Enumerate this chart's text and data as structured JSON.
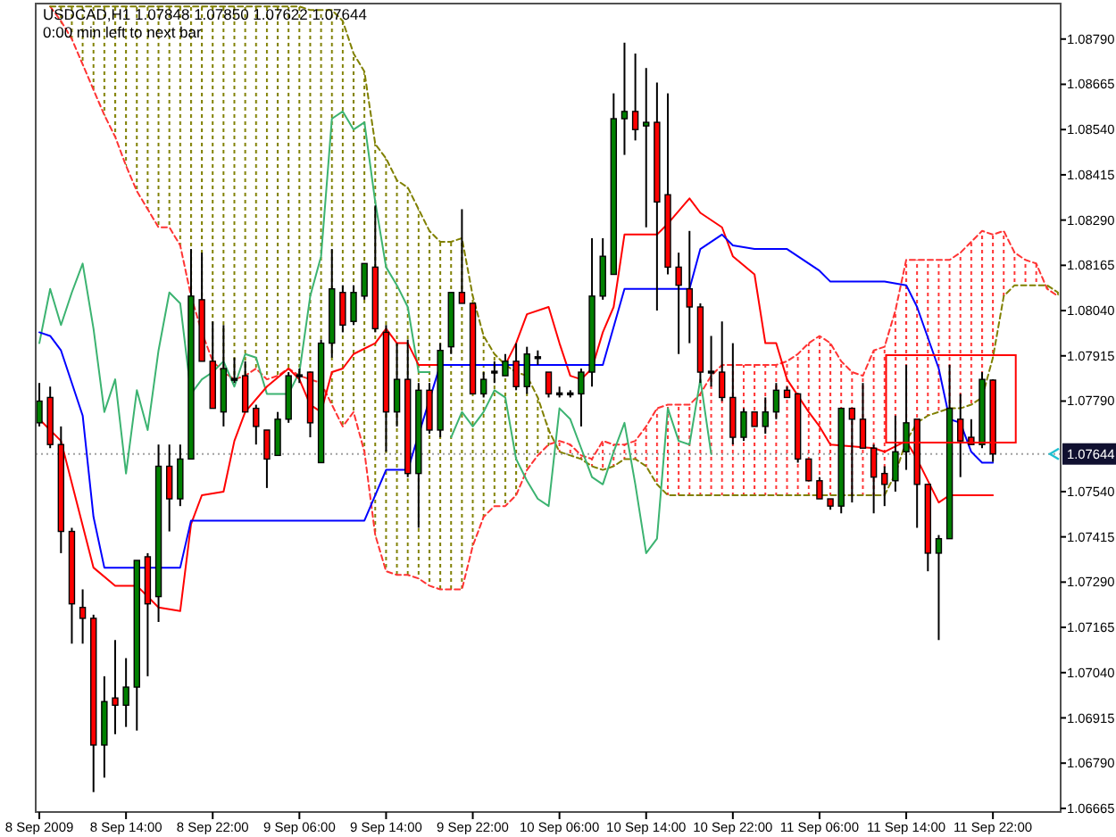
{
  "chart_data": {
    "type": "candlestick",
    "title": "USDCAD,H1 1.07848 1.07850 1.07622 1.07644",
    "subtitle": "0:00 min left to next bar",
    "x": [
      "2009-09-08T06:00",
      "2009-09-08T07:00",
      "2009-09-08T08:00",
      "2009-09-08T09:00",
      "2009-09-08T10:00",
      "2009-09-08T11:00",
      "2009-09-08T12:00",
      "2009-09-08T13:00",
      "2009-09-08T14:00",
      "2009-09-08T15:00",
      "2009-09-08T16:00",
      "2009-09-08T17:00",
      "2009-09-08T18:00",
      "2009-09-08T19:00",
      "2009-09-08T20:00",
      "2009-09-08T21:00",
      "2009-09-08T22:00",
      "2009-09-08T23:00",
      "2009-09-09T00:00",
      "2009-09-09T01:00",
      "2009-09-09T02:00",
      "2009-09-09T03:00",
      "2009-09-09T04:00",
      "2009-09-09T05:00",
      "2009-09-09T06:00",
      "2009-09-09T07:00",
      "2009-09-09T08:00",
      "2009-09-09T09:00",
      "2009-09-09T10:00",
      "2009-09-09T11:00",
      "2009-09-09T12:00",
      "2009-09-09T13:00",
      "2009-09-09T14:00",
      "2009-09-09T15:00",
      "2009-09-09T16:00",
      "2009-09-09T17:00",
      "2009-09-09T18:00",
      "2009-09-09T19:00",
      "2009-09-09T20:00",
      "2009-09-09T21:00",
      "2009-09-09T22:00",
      "2009-09-09T23:00",
      "2009-09-10T00:00",
      "2009-09-10T01:00",
      "2009-09-10T02:00",
      "2009-09-10T03:00",
      "2009-09-10T04:00",
      "2009-09-10T05:00",
      "2009-09-10T06:00",
      "2009-09-10T07:00",
      "2009-09-10T08:00",
      "2009-09-10T09:00",
      "2009-09-10T10:00",
      "2009-09-10T11:00",
      "2009-09-10T12:00",
      "2009-09-10T13:00",
      "2009-09-10T14:00",
      "2009-09-10T15:00",
      "2009-09-10T16:00",
      "2009-09-10T17:00",
      "2009-09-10T18:00",
      "2009-09-10T19:00",
      "2009-09-10T20:00",
      "2009-09-10T21:00",
      "2009-09-10T22:00",
      "2009-09-10T23:00",
      "2009-09-11T00:00",
      "2009-09-11T01:00",
      "2009-09-11T02:00",
      "2009-09-11T03:00",
      "2009-09-11T04:00",
      "2009-09-11T05:00",
      "2009-09-11T06:00",
      "2009-09-11T07:00",
      "2009-09-11T08:00",
      "2009-09-11T09:00",
      "2009-09-11T10:00",
      "2009-09-11T11:00",
      "2009-09-11T12:00",
      "2009-09-11T13:00",
      "2009-09-11T14:00",
      "2009-09-11T15:00",
      "2009-09-11T16:00",
      "2009-09-11T17:00",
      "2009-09-11T18:00",
      "2009-09-11T19:00",
      "2009-09-11T20:00",
      "2009-09-11T21:00",
      "2009-09-11T22:00",
      "2009-09-11T23:00",
      "2009-09-12T00:00",
      "2009-09-12T01:00",
      "2009-09-12T02:00",
      "2009-09-12T03:00",
      "2009-09-12T04:00"
    ],
    "ohlc": [
      [
        1.0773,
        1.0784,
        1.0772,
        1.0779
      ],
      [
        1.078,
        1.0783,
        1.0766,
        1.0767
      ],
      [
        1.0767,
        1.0772,
        1.0737,
        1.0743
      ],
      [
        1.0743,
        1.0744,
        1.0712,
        1.0723
      ],
      [
        1.0722,
        1.0727,
        1.0712,
        1.0719
      ],
      [
        1.0719,
        1.072,
        1.0671,
        1.0684
      ],
      [
        1.0684,
        1.0703,
        1.0675,
        1.0696
      ],
      [
        1.0697,
        1.0713,
        1.0687,
        1.0695
      ],
      [
        1.0695,
        1.0708,
        1.0689,
        1.07
      ],
      [
        1.07,
        1.0735,
        1.0688,
        1.0735
      ],
      [
        1.0736,
        1.0737,
        1.0703,
        1.0723
      ],
      [
        1.0725,
        1.0767,
        1.0718,
        1.0761
      ],
      [
        1.0761,
        1.0767,
        1.0743,
        1.0752
      ],
      [
        1.0752,
        1.0767,
        1.075,
        1.0763
      ],
      [
        1.0763,
        1.0821,
        1.0763,
        1.0808
      ],
      [
        1.0807,
        1.082,
        1.079,
        1.079
      ],
      [
        1.079,
        1.0801,
        1.0777,
        1.0777
      ],
      [
        1.0776,
        1.08,
        1.0772,
        1.0788
      ],
      [
        1.0785,
        1.0791,
        1.0784,
        1.0785
      ],
      [
        1.0786,
        1.079,
        1.0776,
        1.0776
      ],
      [
        1.0777,
        1.0778,
        1.0767,
        1.0772
      ],
      [
        1.0771,
        1.0771,
        1.0755,
        1.0763
      ],
      [
        1.0764,
        1.0776,
        1.0764,
        1.0774
      ],
      [
        1.0774,
        1.0787,
        1.0773,
        1.0786
      ],
      [
        1.0786,
        1.0788,
        1.0784,
        1.0786
      ],
      [
        1.0787,
        1.0787,
        1.0769,
        1.0773
      ],
      [
        1.0762,
        1.0796,
        1.0762,
        1.0795
      ],
      [
        1.0795,
        1.0821,
        1.0791,
        1.081
      ],
      [
        1.0809,
        1.0811,
        1.0798,
        1.08
      ],
      [
        1.0801,
        1.0811,
        1.08,
        1.0809
      ],
      [
        1.0808,
        1.0817,
        1.0807,
        1.0817
      ],
      [
        1.0816,
        1.0833,
        1.0798,
        1.0799
      ],
      [
        1.0798,
        1.08,
        1.0765,
        1.0776
      ],
      [
        1.0776,
        1.0795,
        1.0772,
        1.0785
      ],
      [
        1.0785,
        1.0796,
        1.0758,
        1.0759
      ],
      [
        1.0759,
        1.0784,
        1.0744,
        1.0782
      ],
      [
        1.0782,
        1.0784,
        1.077,
        1.0771
      ],
      [
        1.0771,
        1.0795,
        1.0769,
        1.0793
      ],
      [
        1.0794,
        1.0809,
        1.0792,
        1.0809
      ],
      [
        1.0809,
        1.0832,
        1.0806,
        1.0806
      ],
      [
        1.0806,
        1.0806,
        1.0781,
        1.0781
      ],
      [
        1.0781,
        1.0787,
        1.078,
        1.0785
      ],
      [
        1.0787,
        1.079,
        1.0784,
        1.0787
      ],
      [
        1.0786,
        1.0792,
        1.0786,
        1.079
      ],
      [
        1.079,
        1.0795,
        1.0782,
        1.0783
      ],
      [
        1.0783,
        1.0794,
        1.0781,
        1.0792
      ],
      [
        1.0791,
        1.0793,
        1.0789,
        1.0791
      ],
      [
        1.0787,
        1.0787,
        1.078,
        1.0781
      ],
      [
        1.0781,
        1.0783,
        1.078,
        1.0781
      ],
      [
        1.0781,
        1.0782,
        1.078,
        1.0781
      ],
      [
        1.0781,
        1.0788,
        1.0772,
        1.0787
      ],
      [
        1.0787,
        1.0824,
        1.0783,
        1.0808
      ],
      [
        1.0808,
        1.0824,
        1.0807,
        1.0819
      ],
      [
        1.0814,
        1.0864,
        1.0814,
        1.0857
      ],
      [
        1.0857,
        1.0878,
        1.0847,
        1.0859
      ],
      [
        1.0859,
        1.0875,
        1.0851,
        1.0854
      ],
      [
        1.0855,
        1.0871,
        1.0827,
        1.0856
      ],
      [
        1.0856,
        1.0867,
        1.0804,
        1.0834
      ],
      [
        1.0836,
        1.0864,
        1.0814,
        1.0816
      ],
      [
        1.0816,
        1.082,
        1.0792,
        1.0811
      ],
      [
        1.081,
        1.0826,
        1.0795,
        1.0805
      ],
      [
        1.0805,
        1.0806,
        1.0784,
        1.0787
      ],
      [
        1.0787,
        1.0797,
        1.0783,
        1.0787
      ],
      [
        1.0787,
        1.0801,
        1.0779,
        1.078
      ],
      [
        1.078,
        1.0795,
        1.0767,
        1.0769
      ],
      [
        1.0769,
        1.0777,
        1.0768,
        1.0776
      ],
      [
        1.0776,
        1.0776,
        1.0772,
        1.0772
      ],
      [
        1.0772,
        1.078,
        1.077,
        1.0776
      ],
      [
        1.0776,
        1.0784,
        1.0774,
        1.0782
      ],
      [
        1.0782,
        1.0783,
        1.078,
        1.078
      ],
      [
        1.0781,
        1.0781,
        1.0762,
        1.0763
      ],
      [
        1.0763,
        1.0763,
        1.0757,
        1.0757
      ],
      [
        1.0757,
        1.0758,
        1.0752,
        1.0752
      ],
      [
        1.0752,
        1.0752,
        1.0749,
        1.075
      ],
      [
        1.075,
        1.0777,
        1.0748,
        1.0777
      ],
      [
        1.0777,
        1.0777,
        1.0751,
        1.0774
      ],
      [
        1.0774,
        1.0784,
        1.0766,
        1.0766
      ],
      [
        1.0766,
        1.0767,
        1.0748,
        1.0758
      ],
      [
        1.0759,
        1.0761,
        1.075,
        1.0756
      ],
      [
        1.0757,
        1.0775,
        1.0754,
        1.0765
      ],
      [
        1.0765,
        1.0789,
        1.076,
        1.0773
      ],
      [
        1.0774,
        1.0774,
        1.0744,
        1.0756
      ],
      [
        1.0756,
        1.0756,
        1.0732,
        1.0737
      ],
      [
        1.0737,
        1.0742,
        1.0713,
        1.0741
      ],
      [
        1.0741,
        1.0789,
        1.0741,
        1.0777
      ],
      [
        1.0774,
        1.0781,
        1.0758,
        1.0768
      ],
      [
        1.0769,
        1.0774,
        1.0767,
        1.0767
      ],
      [
        1.0767,
        1.0787,
        1.0766,
        1.0785
      ],
      [
        1.07848,
        1.0785,
        1.07622,
        1.07644
      ],
      null,
      null,
      null,
      null,
      null,
      null
    ],
    "colors": [
      "#008000",
      "#ff0000",
      "#ff0000",
      "#ff0000",
      "#ff0000",
      "#ff0000",
      "#008000",
      "#ff0000",
      "#008000",
      "#008000",
      "#ff0000",
      "#008000",
      "#ff0000",
      "#008000",
      "#008000",
      "#ff0000",
      "#ff0000",
      "#008000",
      "#000000",
      "#ff0000",
      "#ff0000",
      "#ff0000",
      "#008000",
      "#008000",
      "#000000",
      "#ff0000",
      "#008000",
      "#008000",
      "#ff0000",
      "#008000",
      "#008000",
      "#ff0000",
      "#ff0000",
      "#008000",
      "#ff0000",
      "#008000",
      "#ff0000",
      "#008000",
      "#008000",
      "#ff0000",
      "#ff0000",
      "#008000",
      "#000000",
      "#008000",
      "#ff0000",
      "#008000",
      "#000000",
      "#ff0000",
      "#000000",
      "#000000",
      "#008000",
      "#008000",
      "#008000",
      "#008000",
      "#008000",
      "#ff0000",
      "#008000",
      "#ff0000",
      "#ff0000",
      "#ff0000",
      "#ff0000",
      "#ff0000",
      "#000000",
      "#ff0000",
      "#ff0000",
      "#008000",
      "#ff0000",
      "#008000",
      "#008000",
      "#ff0000",
      "#ff0000",
      "#ff0000",
      "#ff0000",
      "#ff0000",
      "#008000",
      "#ff0000",
      "#ff0000",
      "#ff0000",
      "#ff0000",
      "#008000",
      "#008000",
      "#ff0000",
      "#ff0000",
      "#008000",
      "#008000",
      "#ff0000",
      "#ff0000",
      "#008000",
      "#ff0000",
      null,
      null,
      null,
      null,
      null,
      null
    ],
    "series": [
      {
        "type": "line",
        "line_style": "dashed",
        "color": "#ff3333",
        "values": [
          null,
          1.0888,
          1.0884,
          1.0879,
          1.0872,
          1.0865,
          1.0858,
          1.0852,
          1.0844,
          1.0837,
          1.0832,
          1.0827,
          1.0827,
          1.0822,
          1.0808,
          1.0798,
          1.079,
          1.0787,
          1.0785,
          1.0786,
          1.0788,
          1.0785,
          1.0786,
          1.0788,
          1.0786,
          1.0785,
          1.0784,
          1.0778,
          1.0772,
          1.0776,
          1.0765,
          1.0742,
          1.0732,
          1.0731,
          1.0731,
          1.073,
          1.0728,
          1.0727,
          1.0727,
          1.0727,
          1.0739,
          1.0747,
          1.075,
          1.075,
          1.0753,
          1.076,
          1.0764,
          1.0767,
          1.0768,
          1.0767,
          1.0764,
          1.0763,
          1.0768,
          1.0767,
          1.0767,
          1.0768,
          1.0772,
          1.0777,
          1.0778,
          1.0778,
          1.0778,
          1.0781,
          1.0786,
          1.0789,
          1.0789,
          1.0789,
          1.0789,
          1.0789,
          1.0789,
          1.079,
          1.0792,
          1.0795,
          1.0797,
          1.0795,
          1.079,
          1.0787,
          1.0786,
          1.0793,
          1.0794,
          1.0804,
          1.0818,
          1.0818,
          1.0818,
          1.0818,
          1.0818,
          1.082,
          1.0823,
          1.0826,
          1.0825,
          1.0826,
          1.082,
          1.0818,
          1.0817,
          1.081,
          1.0808
        ],
        "lower": [
          null,
          null,
          null,
          null,
          null,
          null,
          null,
          null,
          null,
          null,
          null,
          null,
          null,
          null,
          null,
          null,
          null,
          null,
          null,
          null,
          null,
          null,
          null,
          null,
          null,
          null,
          null,
          null,
          null,
          null,
          null,
          null,
          null,
          null,
          null,
          null,
          null,
          null,
          null,
          null,
          null,
          null,
          null,
          null,
          null,
          null,
          null,
          null,
          1.0765,
          1.0764,
          1.0763,
          1.0761,
          1.076,
          1.0761,
          1.0763,
          1.0763,
          1.0761,
          1.0756,
          1.0753,
          1.0753,
          1.0753,
          1.0753,
          1.0753,
          1.0753,
          1.0753,
          1.0753,
          1.0753,
          1.0753,
          1.0753,
          1.0753,
          1.0753,
          1.0753,
          1.0753,
          1.0753,
          1.0753,
          1.0753,
          1.0753,
          1.0753,
          1.0753,
          1.0759,
          1.0768,
          1.0773,
          1.0775,
          1.0776,
          1.0777,
          1.0777,
          1.0778,
          1.078,
          1.0791,
          1.0808,
          1.0811,
          1.0811,
          1.0811,
          null,
          null
        ],
        "upper": [
          null,
          null,
          null,
          null,
          null,
          null,
          null,
          null,
          null,
          null,
          null,
          null,
          null,
          null,
          null,
          null,
          null,
          null,
          null,
          null,
          null,
          null,
          null,
          null,
          null,
          null,
          null,
          null,
          null,
          null,
          null,
          null,
          null,
          null,
          null,
          null,
          null,
          null,
          null,
          null,
          null,
          null,
          null,
          null,
          null,
          null,
          null,
          null,
          1.0768,
          1.0767,
          1.0764,
          1.0763,
          1.0768,
          1.0767,
          1.0767,
          1.0768,
          1.0772,
          1.0777,
          1.0778,
          1.0778,
          1.0778,
          1.0781,
          1.0786,
          1.0789,
          1.0789,
          1.0789,
          1.0789,
          1.0789,
          1.0789,
          1.079,
          1.0792,
          1.0795,
          1.0797,
          1.0795,
          1.079,
          1.0787,
          1.0786,
          1.0793,
          1.0794,
          1.0804,
          1.0818,
          1.0818,
          1.0818,
          1.0818,
          1.0818,
          1.082,
          1.0823,
          1.0826,
          1.0825,
          1.0826,
          1.082,
          1.0818,
          1.0817,
          null,
          null
        ]
      },
      {
        "type": "line",
        "line_style": "dashed",
        "color": "#808000",
        "values": [
          null,
          1.0888,
          1.0888,
          1.0888,
          1.0888,
          1.0888,
          1.0888,
          1.0888,
          1.0888,
          1.0888,
          1.0888,
          1.0888,
          1.0888,
          1.0888,
          1.0888,
          1.0888,
          1.0888,
          1.0888,
          1.0888,
          1.0888,
          1.0888,
          1.0888,
          1.0888,
          1.0888,
          1.0888,
          1.0887,
          1.0887,
          1.0887,
          1.0884,
          1.0875,
          1.087,
          1.085,
          1.0846,
          1.084,
          1.0838,
          1.0832,
          1.0826,
          1.0823,
          1.0823,
          1.0824,
          1.0808,
          1.0797,
          1.0792,
          1.0789,
          1.0787,
          1.0786,
          1.078,
          1.0771,
          1.0765,
          1.0764,
          1.0763,
          1.0761,
          1.076,
          1.0761,
          1.0763,
          1.0763,
          1.0761,
          1.0756,
          1.0753,
          1.0753,
          1.0753,
          1.0753,
          1.0753,
          1.0753,
          1.0753,
          1.0753,
          1.0753,
          1.0753,
          1.0753,
          1.0753,
          1.0753,
          1.0753,
          1.0753,
          1.0753,
          1.0753,
          1.0753,
          1.0753,
          1.0753,
          1.0753,
          1.0759,
          1.0768,
          1.0773,
          1.0775,
          1.0776,
          1.0777,
          1.0777,
          1.0778,
          1.078,
          1.0791,
          1.0808,
          1.0811,
          1.0811,
          1.0811,
          1.0811,
          1.0809
        ],
        "lower": [
          null,
          null,
          1.0884,
          1.0879,
          1.0872,
          1.0865,
          1.0858,
          1.0852,
          1.0844,
          1.0837,
          1.0832,
          1.0827,
          1.0827,
          1.0822,
          1.0808,
          1.0798,
          1.079,
          1.0787,
          1.0785,
          1.0786,
          1.0788,
          1.0785,
          1.0786,
          1.0788,
          1.0786,
          1.0785,
          1.0784,
          1.0778,
          1.0772,
          1.0776,
          1.0765,
          1.0742,
          1.0732,
          1.0731,
          1.0731,
          1.073,
          1.0728,
          1.0727,
          1.0727,
          1.0727,
          1.0739,
          1.0747,
          1.075,
          1.075,
          1.0753,
          1.076,
          1.0764,
          1.0767,
          null,
          null,
          null,
          null,
          null,
          null,
          null,
          null,
          null,
          null,
          null,
          null,
          null,
          null,
          null,
          null,
          null,
          null,
          null,
          null,
          null,
          null,
          null,
          null,
          null,
          null,
          null,
          null,
          null,
          null,
          null,
          null,
          null,
          null,
          null,
          null,
          null,
          null,
          null,
          null,
          null,
          null,
          null,
          null,
          null,
          1.081,
          1.0808
        ],
        "upper": [
          null,
          null,
          1.0888,
          1.0888,
          1.0888,
          1.0888,
          1.0888,
          1.0888,
          1.0888,
          1.0888,
          1.0888,
          1.0888,
          1.0888,
          1.0888,
          1.0888,
          1.0888,
          1.0888,
          1.0888,
          1.0888,
          1.0888,
          1.0888,
          1.0888,
          1.0888,
          1.0888,
          1.0888,
          1.0887,
          1.0887,
          1.0887,
          1.0884,
          1.0875,
          1.087,
          1.085,
          1.0846,
          1.084,
          1.0838,
          1.0832,
          1.0826,
          1.0823,
          1.0823,
          1.0824,
          1.0808,
          1.0797,
          1.0792,
          1.0789,
          1.0787,
          1.0786,
          1.078,
          1.0771,
          null,
          null,
          null,
          null,
          null,
          null,
          null,
          null,
          null,
          null,
          null,
          null,
          null,
          null,
          null,
          null,
          null,
          null,
          null,
          null,
          null,
          null,
          null,
          null,
          null,
          null,
          null,
          null,
          null,
          null,
          null,
          null,
          null,
          null,
          null,
          null,
          null,
          null,
          null,
          null,
          null,
          null,
          null,
          null,
          null,
          1.0811,
          1.0809
        ]
      },
      {
        "type": "line",
        "color": "#3cb371",
        "values": [
          1.0795,
          1.081,
          1.08,
          1.0809,
          1.0817,
          1.0799,
          1.0776,
          1.0785,
          1.0759,
          1.0782,
          1.0771,
          1.0793,
          1.0809,
          1.0806,
          1.0781,
          1.0785,
          1.0787,
          1.079,
          1.0783,
          1.0792,
          1.0791,
          1.0781,
          1.0781,
          1.0781,
          1.0787,
          1.0808,
          1.0819,
          1.0857,
          1.0859,
          1.0854,
          1.0856,
          1.0834,
          1.0816,
          1.0811,
          1.0805,
          1.0787,
          1.0787,
          null,
          1.0769,
          1.0776,
          1.0772,
          1.0776,
          1.0782,
          1.078,
          1.0763,
          1.0757,
          1.0752,
          1.075,
          1.0777,
          1.0774,
          1.0766,
          1.0758,
          1.0756,
          1.0765,
          1.0773,
          1.0756,
          1.0737,
          1.0741,
          1.0777,
          1.0768,
          1.0767,
          1.0785,
          1.07644,
          null,
          null,
          null,
          null,
          null,
          null,
          null,
          null,
          null,
          null,
          null,
          null,
          null,
          null,
          null,
          null,
          null,
          null,
          null,
          null,
          null,
          null,
          null,
          null,
          null,
          null,
          null,
          null,
          null,
          null,
          null,
          null
        ]
      },
      {
        "type": "line",
        "color": "#ff0000",
        "x": [
          "2009-09-08T06:00",
          "2009-09-08T08:00",
          "2009-09-08T11:00",
          "2009-09-08T13:00",
          "2009-09-08T15:00",
          "2009-09-08T17:00",
          "2009-09-08T19:00",
          "2009-09-08T20:00",
          "2009-09-08T21:00",
          "2009-09-08T23:00",
          "2009-09-09T00:00",
          "2009-09-09T01:00",
          "2009-09-09T03:00",
          "2009-09-09T05:00",
          "2009-09-09T06:00",
          "2009-09-09T07:00",
          "2009-09-09T08:00",
          "2009-09-09T09:00",
          "2009-09-09T10:00",
          "2009-09-09T11:00",
          "2009-09-09T13:00",
          "2009-09-09T14:00",
          "2009-09-09T15:00",
          "2009-09-09T16:00",
          "2009-09-09T17:00",
          "2009-09-10T01:00",
          "2009-09-10T02:00",
          "2009-09-10T03:00",
          "2009-09-10T05:00",
          "2009-09-10T06:00",
          "2009-09-10T07:00",
          "2009-09-10T08:00",
          "2009-09-10T09:00",
          "2009-09-10T10:00",
          "2009-09-10T11:00",
          "2009-09-10T12:00",
          "2009-09-10T15:00",
          "2009-09-10T16:00",
          "2009-09-10T18:00",
          "2009-09-10T19:00",
          "2009-09-10T21:00",
          "2009-09-10T22:00",
          "2009-09-11T00:00",
          "2009-09-11T01:00",
          "2009-09-11T02:00",
          "2009-09-11T03:00",
          "2009-09-11T05:00",
          "2009-09-11T06:00",
          "2009-09-11T07:00",
          "2009-09-11T11:00",
          "2009-09-11T12:00",
          "2009-09-11T14:00",
          "2009-09-11T15:00",
          "2009-09-11T17:00",
          "2009-09-11T18:00",
          "2009-09-11T22:00"
        ],
        "values": [
          1.0774,
          1.0768,
          1.0733,
          1.0728,
          1.0728,
          1.0722,
          1.0721,
          1.0745,
          1.0753,
          1.0754,
          1.0768,
          1.0776,
          1.0783,
          1.0788,
          1.0785,
          1.0778,
          1.0776,
          1.0787,
          1.0788,
          1.0792,
          1.0795,
          1.0799,
          1.0795,
          1.0795,
          1.0789,
          1.0789,
          1.0795,
          1.0803,
          1.0805,
          1.0795,
          1.0786,
          1.0785,
          1.0788,
          1.0798,
          1.0805,
          1.0825,
          1.0825,
          1.0828,
          1.0835,
          1.0831,
          1.0827,
          1.0819,
          1.0814,
          1.0795,
          1.0795,
          1.0785,
          1.0776,
          1.0772,
          1.0767,
          1.0766,
          1.0765,
          1.0768,
          1.0763,
          1.0751,
          1.0753,
          1.0753
        ]
      },
      {
        "type": "line",
        "color": "#0000ff",
        "x": [
          "2009-09-08T06:00",
          "2009-09-08T07:00",
          "2009-09-08T08:00",
          "2009-09-08T09:00",
          "2009-09-08T10:00",
          "2009-09-08T11:00",
          "2009-09-08T12:00",
          "2009-09-08T19:00",
          "2009-09-08T20:00",
          "2009-09-09T12:00",
          "2009-09-09T14:00",
          "2009-09-09T16:00",
          "2009-09-09T19:00",
          "2009-09-10T10:00",
          "2009-09-10T12:00",
          "2009-09-10T18:00",
          "2009-09-10T19:00",
          "2009-09-10T21:00",
          "2009-09-10T22:00",
          "2009-09-11T00:00",
          "2009-09-11T03:00",
          "2009-09-11T06:00",
          "2009-09-11T07:00",
          "2009-09-11T12:00",
          "2009-09-11T14:00",
          "2009-09-11T15:00",
          "2009-09-11T17:00",
          "2009-09-11T18:00",
          "2009-09-11T19:00",
          "2009-09-11T20:00",
          "2009-09-11T21:00",
          "2009-09-11T22:00"
        ],
        "values": [
          1.0798,
          1.0797,
          1.0793,
          1.0784,
          1.0775,
          1.0747,
          1.0733,
          1.0733,
          1.0746,
          1.0746,
          1.076,
          1.076,
          1.0789,
          1.0789,
          1.081,
          1.081,
          1.0821,
          1.0825,
          1.0822,
          1.0821,
          1.0821,
          1.0815,
          1.0812,
          1.0812,
          1.0811,
          1.0805,
          1.0788,
          1.0774,
          1.0773,
          1.0765,
          1.0762,
          1.0762
        ]
      }
    ],
    "xlim": [
      "2009-09-08T05:40",
      "2009-09-12T04:15"
    ],
    "ylim": [
      1.06655,
      1.08888
    ],
    "xticks": [
      {
        "value": "2009-09-08T06:00",
        "label": "8 Sep 2009"
      },
      {
        "value": "2009-09-08T14:00",
        "label": "8 Sep 14:00"
      },
      {
        "value": "2009-09-08T22:00",
        "label": "8 Sep 22:00"
      },
      {
        "value": "2009-09-09T06:00",
        "label": "9 Sep 06:00"
      },
      {
        "value": "2009-09-09T14:00",
        "label": "9 Sep 14:00"
      },
      {
        "value": "2009-09-09T22:00",
        "label": "9 Sep 22:00"
      },
      {
        "value": "2009-09-10T06:00",
        "label": "10 Sep 06:00"
      },
      {
        "value": "2009-09-10T14:00",
        "label": "10 Sep 14:00"
      },
      {
        "value": "2009-09-10T22:00",
        "label": "10 Sep 22:00"
      },
      {
        "value": "2009-09-11T06:00",
        "label": "11 Sep 06:00"
      },
      {
        "value": "2009-09-11T14:00",
        "label": "11 Sep 14:00"
      },
      {
        "value": "2009-09-11T22:00",
        "label": "11 Sep 22:00"
      }
    ],
    "yticks": [
      {
        "value": 1.0879,
        "label": "1.08790"
      },
      {
        "value": 1.08665,
        "label": "1.08665"
      },
      {
        "value": 1.0854,
        "label": "1.08540"
      },
      {
        "value": 1.08415,
        "label": "1.08415"
      },
      {
        "value": 1.0829,
        "label": "1.08290"
      },
      {
        "value": 1.08165,
        "label": "1.08165"
      },
      {
        "value": 1.0804,
        "label": "1.08040"
      },
      {
        "value": 1.07915,
        "label": "1.07915"
      },
      {
        "value": 1.0779,
        "label": "1.07790"
      },
      {
        "value": 1.0754,
        "label": "1.07540"
      },
      {
        "value": 1.07415,
        "label": "1.07415"
      },
      {
        "value": 1.0729,
        "label": "1.07290"
      },
      {
        "value": 1.07165,
        "label": "1.07165"
      },
      {
        "value": 1.0704,
        "label": "1.07040"
      },
      {
        "value": 1.06915,
        "label": "1.06915"
      },
      {
        "value": 1.0679,
        "label": "1.06790"
      },
      {
        "value": 1.06665,
        "label": "1.06665"
      }
    ],
    "ref_lines": [
      {
        "axis": "y",
        "value": 1.07644,
        "label": "1.07644",
        "color": "#a0a0a0",
        "line_style": "dotted"
      }
    ]
  }
}
